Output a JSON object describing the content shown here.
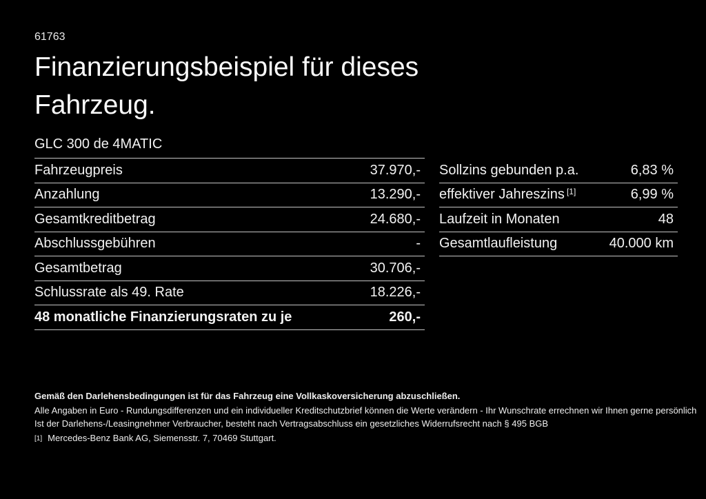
{
  "page": {
    "listing_id": "61763",
    "title": "Finanzierungsbeispiel für dieses\nFahrzeug.",
    "vehicle": "GLC 300 de 4MATIC"
  },
  "finance_table": {
    "rows": [
      {
        "label": "Fahrzeugpreis",
        "value": "37.970,-",
        "emphasis": false
      },
      {
        "label": "Anzahlung",
        "value": "13.290,-",
        "emphasis": false
      },
      {
        "label": "Gesamtkreditbetrag",
        "value": "24.680,-",
        "emphasis": false
      },
      {
        "label": "Abschlussgebühren",
        "value": "-",
        "emphasis": false
      },
      {
        "label": "Gesamtbetrag",
        "value": "30.706,-",
        "emphasis": false
      },
      {
        "label": "Schlussrate als 49. Rate",
        "value": "18.226,-",
        "emphasis": false
      },
      {
        "label": "48 monatliche Finanzierungsraten zu je",
        "value": "260,-",
        "emphasis": true
      }
    ]
  },
  "conditions_table": {
    "rows": [
      {
        "label": "Sollzins gebunden p.a.",
        "sup": "",
        "value": "6,83 %"
      },
      {
        "label": "effektiver Jahreszins",
        "sup": "[1]",
        "value": "6,99 %"
      },
      {
        "label": "Laufzeit in Monaten",
        "sup": "",
        "value": "48"
      },
      {
        "label": "Gesamtlaufleistung",
        "sup": "",
        "value": "40.000 km"
      }
    ]
  },
  "footer": {
    "insurance_note": "Gemäß den Darlehensbedingungen ist für das Fahrzeug eine Vollkaskoversicherung abzuschließen.",
    "line1": "Alle Angaben in Euro - Rundungsdifferenzen und ein individueller Kreditschutzbrief können die Werte verändern - Ihr Wunschrate errechnen wir Ihnen gerne persönlich",
    "line2": "Ist der Darlehens-/Leasingnehmer Verbraucher, besteht nach Vertragsabschluss ein gesetzliches Widerrufsrecht nach § 495 BGB",
    "footnote_marker": "[1]",
    "footnote_text": "Mercedes-Benz Bank AG, Siemensstr. 7, 70469 Stuttgart."
  },
  "colors": {
    "background": "#000000",
    "text": "#f2f2f2",
    "divider": "#c6c6c6"
  }
}
